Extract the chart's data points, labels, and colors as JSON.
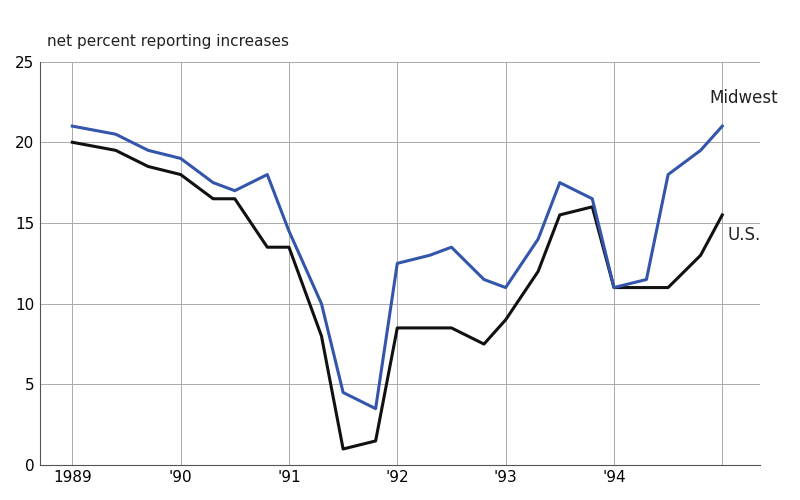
{
  "title": "net percent reporting increases",
  "ylim": [
    0,
    25
  ],
  "yticks": [
    0,
    5,
    10,
    15,
    20,
    25
  ],
  "xtick_positions": [
    1988.5,
    1989.5,
    1990.5,
    1991.5,
    1992.5,
    1993.5,
    1994.5
  ],
  "xtick_labels": [
    "1989",
    "'90",
    "'91",
    "'92",
    "'93",
    "'94",
    ""
  ],
  "midwest_x": [
    1988.5,
    1988.9,
    1989.2,
    1989.5,
    1989.8,
    1990.0,
    1990.3,
    1990.5,
    1990.8,
    1991.0,
    1991.3,
    1991.5,
    1991.8,
    1992.0,
    1992.3,
    1992.5,
    1992.8,
    1993.0,
    1993.3,
    1993.5,
    1993.8,
    1994.0,
    1994.3,
    1994.5
  ],
  "midwest_y": [
    21.0,
    20.5,
    19.5,
    19.0,
    17.5,
    17.0,
    18.0,
    14.5,
    10.0,
    4.5,
    3.5,
    12.5,
    13.0,
    13.5,
    11.5,
    11.0,
    14.0,
    17.5,
    16.5,
    11.0,
    11.5,
    18.0,
    19.5,
    21.0
  ],
  "us_x": [
    1988.5,
    1988.9,
    1989.2,
    1989.5,
    1989.8,
    1990.0,
    1990.3,
    1990.5,
    1990.8,
    1991.0,
    1991.3,
    1991.5,
    1991.8,
    1992.0,
    1992.3,
    1992.5,
    1992.8,
    1993.0,
    1993.3,
    1993.5,
    1993.8,
    1994.0,
    1994.3,
    1994.5
  ],
  "us_y": [
    20.0,
    19.5,
    18.5,
    18.0,
    16.5,
    16.5,
    13.5,
    13.5,
    8.0,
    1.0,
    1.5,
    8.5,
    8.5,
    8.5,
    7.5,
    9.0,
    12.0,
    15.5,
    16.0,
    11.0,
    11.0,
    11.0,
    13.0,
    15.5
  ],
  "midwest_color": "#3355aa",
  "us_color": "#111111",
  "linewidth": 2.2,
  "label_midwest": "Midwest",
  "label_us": "U.S.",
  "background_color": "#ffffff",
  "xlim": [
    1988.2,
    1994.85
  ]
}
